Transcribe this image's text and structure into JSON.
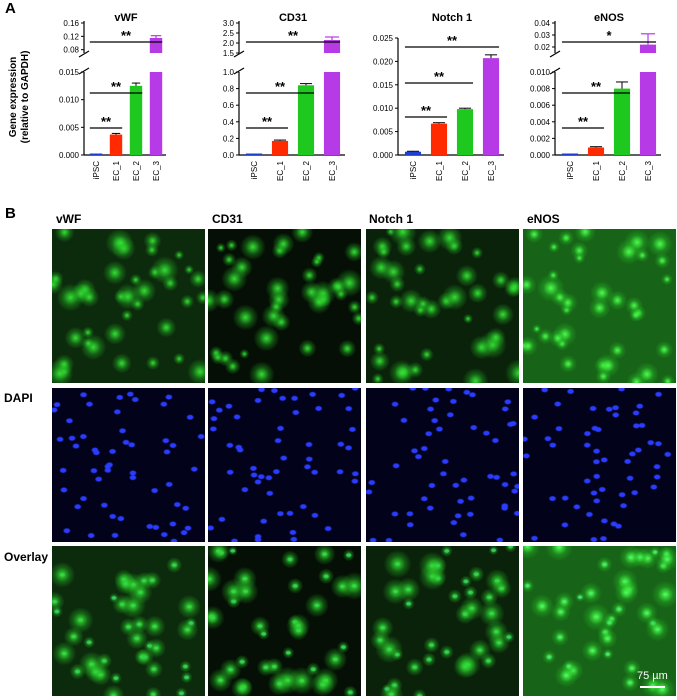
{
  "panel_a_label": "A",
  "panel_b_label": "B",
  "ylabel_line1": "Gene expression",
  "ylabel_line2": "(relative to GAPDH)",
  "chart_data": [
    {
      "type": "bar",
      "title": "vWF",
      "categories": [
        "iPSC",
        "EC_1",
        "EC_2",
        "EC_3"
      ],
      "values": [
        0.0001,
        0.0037,
        0.0125,
        0.115
      ],
      "errors": [
        0,
        0.0002,
        0.0005,
        0.007
      ],
      "colors": [
        "#1f3fcf",
        "#ff2a00",
        "#1ec81e",
        "#b63ae6"
      ],
      "lower_ticks": [
        "0.000",
        "0.005",
        "0.010",
        "0.015"
      ],
      "lower_ylim": [
        0,
        0.015
      ],
      "upper_ticks": [
        "0.08",
        "0.12",
        "0.16"
      ],
      "upper_ylim": [
        0.07,
        0.16
      ],
      "annotations": [
        {
          "from": 0,
          "to": 1,
          "text": "**"
        },
        {
          "from": 0,
          "to": 2,
          "text": "**"
        },
        {
          "from": 0,
          "to": 3,
          "text": "**"
        }
      ]
    },
    {
      "type": "bar",
      "title": "CD31",
      "categories": [
        "iPSC",
        "EC_1",
        "EC_2",
        "EC_3"
      ],
      "values": [
        0.001,
        0.17,
        0.84,
        2.15
      ],
      "errors": [
        0,
        0.01,
        0.02,
        0.15
      ],
      "colors": [
        "#1f3fcf",
        "#ff2a00",
        "#1ec81e",
        "#b63ae6"
      ],
      "lower_ticks": [
        "0.0",
        "0.2",
        "0.4",
        "0.6",
        "0.8",
        "1.0"
      ],
      "lower_ylim": [
        0,
        1.0
      ],
      "upper_ticks": [
        "1.5",
        "2.0",
        "2.5",
        "3.0"
      ],
      "upper_ylim": [
        1.5,
        3.0
      ],
      "annotations": [
        {
          "from": 0,
          "to": 1,
          "text": "**"
        },
        {
          "from": 0,
          "to": 2,
          "text": "**"
        },
        {
          "from": 0,
          "to": 3,
          "text": "**"
        }
      ]
    },
    {
      "type": "bar",
      "title": "Notch 1",
      "categories": [
        "iPSC",
        "EC_1",
        "EC_2",
        "EC_3"
      ],
      "values": [
        0.0007,
        0.0067,
        0.0098,
        0.0207
      ],
      "errors": [
        0.0001,
        0.0002,
        0.0002,
        0.0007
      ],
      "colors": [
        "#1f3fcf",
        "#ff2a00",
        "#1ec81e",
        "#b63ae6"
      ],
      "ticks": [
        "0.000",
        "0.005",
        "0.010",
        "0.015",
        "0.020",
        "0.025"
      ],
      "ylim": [
        0,
        0.025
      ],
      "annotations": [
        {
          "from": 0,
          "to": 1,
          "text": "**"
        },
        {
          "from": 0,
          "to": 2,
          "text": "**"
        },
        {
          "from": 0,
          "to": 3,
          "text": "**"
        }
      ]
    },
    {
      "type": "bar",
      "title": "eNOS",
      "categories": [
        "iPSC",
        "EC_1",
        "EC_2",
        "EC_3"
      ],
      "values": [
        5e-05,
        0.0009,
        0.008,
        0.022
      ],
      "errors": [
        0,
        0.0001,
        0.0008,
        0.009
      ],
      "colors": [
        "#1f3fcf",
        "#ff2a00",
        "#1ec81e",
        "#b63ae6"
      ],
      "lower_ticks": [
        "0.000",
        "0.002",
        "0.004",
        "0.006",
        "0.008",
        "0.010"
      ],
      "lower_ylim": [
        0,
        0.01
      ],
      "upper_ticks": [
        "0.02",
        "0.03",
        "0.04"
      ],
      "upper_ylim": [
        0.015,
        0.04
      ],
      "annotations": [
        {
          "from": 0,
          "to": 1,
          "text": "**"
        },
        {
          "from": 0,
          "to": 2,
          "text": "**"
        },
        {
          "from": 0,
          "to": 3,
          "text": "*"
        }
      ]
    }
  ],
  "micrograph_columns": [
    "vWF",
    "CD31",
    "Notch 1",
    "eNOS"
  ],
  "micrograph_rows": [
    "DAPI",
    "Overlay"
  ],
  "scale_bar": "75 µm"
}
